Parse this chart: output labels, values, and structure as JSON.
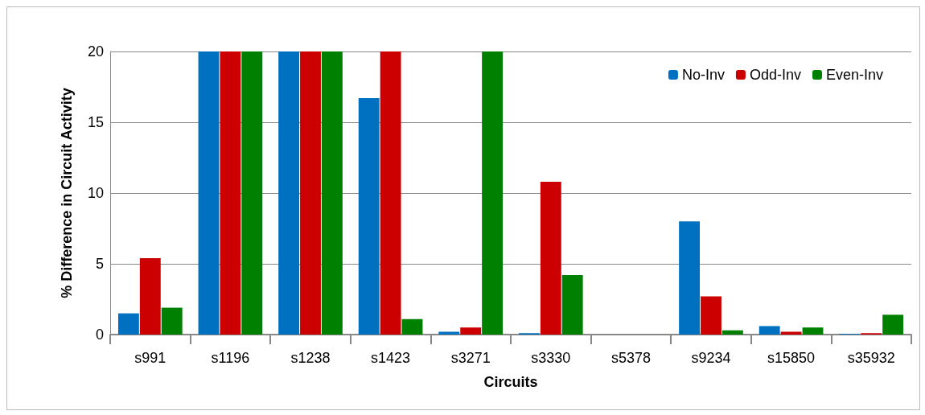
{
  "chart_data": {
    "type": "bar",
    "xlabel": "Circuits",
    "ylabel": "% Difference in Circuit Activity",
    "categories": [
      "s991",
      "s1196",
      "s1238",
      "s1423",
      "s3271",
      "s3330",
      "s5378",
      "s9234",
      "s15850",
      "s35932"
    ],
    "series": [
      {
        "name": "No-Inv",
        "color": "#0070c0",
        "values": [
          1.5,
          20,
          20,
          16.7,
          0.2,
          0.1,
          0,
          8.0,
          0.6,
          0.05
        ]
      },
      {
        "name": "Odd-Inv",
        "color": "#cc0000",
        "values": [
          5.4,
          20,
          20,
          20,
          0.5,
          10.8,
          0,
          2.7,
          0.2,
          0.1
        ]
      },
      {
        "name": "Even-Inv",
        "color": "#008000",
        "values": [
          1.9,
          20,
          20,
          1.1,
          20,
          4.2,
          0,
          0.3,
          0.5,
          1.4
        ]
      }
    ],
    "ylim": [
      0,
      20
    ],
    "yticks": [
      0,
      5,
      10,
      15,
      20
    ],
    "grid": "y",
    "legend": "top right"
  }
}
